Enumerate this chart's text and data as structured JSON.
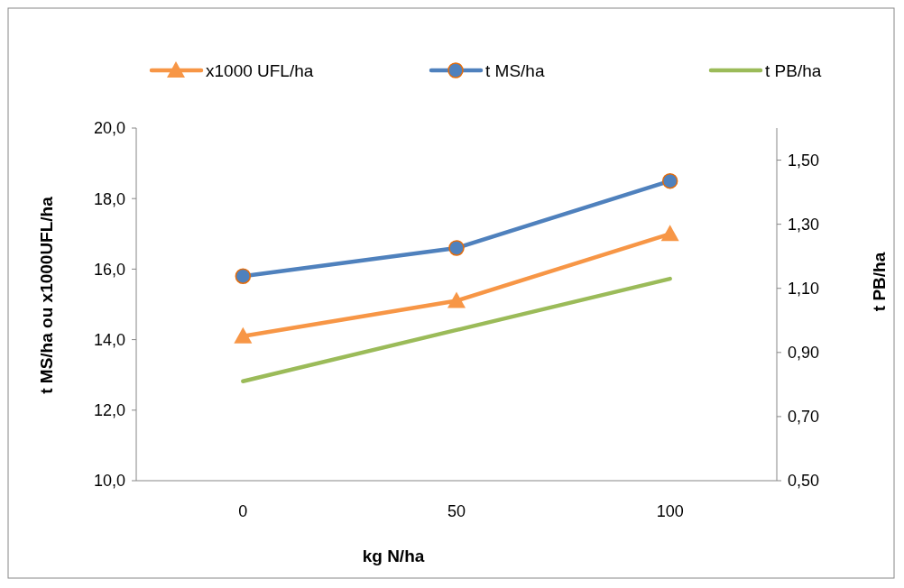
{
  "chart_data": {
    "type": "line",
    "xlabel": "kg N/ha",
    "ylabel": "t MS/ha ou x1000UFL/ha",
    "y2label": "t PB/ha",
    "categories": [
      "0",
      "50",
      "100"
    ],
    "series": [
      {
        "name": "x1000 UFL/ha",
        "color": "#f79646",
        "values": [
          14.1,
          15.1,
          17.0
        ],
        "marker": "triangle"
      },
      {
        "name": "t MS/ha",
        "color": "#4f81bd",
        "values": [
          15.8,
          16.6,
          18.5
        ],
        "marker": "circle"
      },
      {
        "name": "t PB/ha",
        "color": "#9bbb59",
        "values": [
          0.81,
          0.97,
          1.13
        ],
        "marker": "none",
        "axis": "y2"
      }
    ],
    "ylim": [
      10,
      20
    ],
    "yticks": [
      {
        "value": 10,
        "label": "10,0"
      },
      {
        "value": 12,
        "label": "12,0"
      },
      {
        "value": 14,
        "label": "14,0"
      },
      {
        "value": 16,
        "label": "16,0"
      },
      {
        "value": 18,
        "label": "18,0"
      },
      {
        "value": 20,
        "label": "20,0"
      }
    ],
    "y2lim": [
      0.5,
      1.6
    ],
    "y2ticks": [
      {
        "value": 0.5,
        "label": "0,50"
      },
      {
        "value": 0.7,
        "label": "0,70"
      },
      {
        "value": 0.9,
        "label": "0,90"
      },
      {
        "value": 1.1,
        "label": "1,10"
      },
      {
        "value": 1.3,
        "label": "1,30"
      },
      {
        "value": 1.5,
        "label": "1,50"
      }
    ],
    "legend": "top",
    "grid": false
  }
}
